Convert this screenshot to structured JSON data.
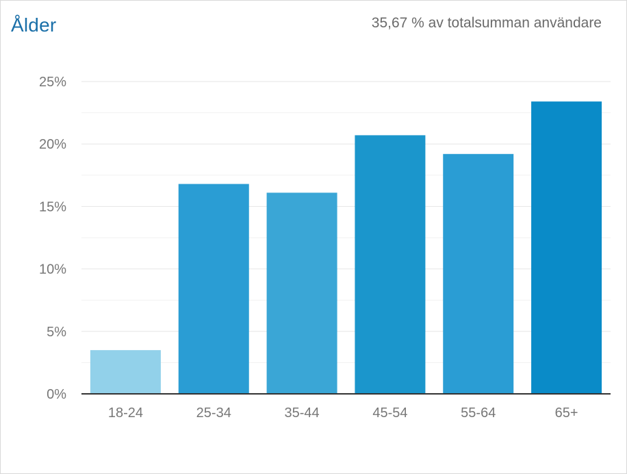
{
  "header": {
    "title": "Ålder",
    "subtitle": "35,67 % av totalsumman användare"
  },
  "colors": {
    "title": "#1a6fa8",
    "bar_light": "#92d1ea",
    "bar_mid": "#3aa6d6",
    "bar_dark": "#0a8bc8",
    "grid": "#e6e6e6",
    "axis": "#333333",
    "tick_text": "#777777"
  },
  "chart_data": {
    "type": "bar",
    "categories": [
      "18-24",
      "25-34",
      "35-44",
      "45-54",
      "55-64",
      "65+"
    ],
    "values": [
      3.5,
      16.8,
      16.1,
      20.7,
      19.2,
      23.4
    ],
    "bar_colors": [
      "#92d1ea",
      "#2a9dd4",
      "#3aa6d6",
      "#1b96cc",
      "#2a9dd4",
      "#0a8bc8"
    ],
    "ylim": [
      0,
      25
    ],
    "yticks": [
      0,
      5,
      10,
      15,
      20,
      25
    ],
    "ytick_labels": [
      "0%",
      "5%",
      "10%",
      "15%",
      "20%",
      "25%"
    ],
    "minor_grid": true,
    "xlabel": "",
    "ylabel": "",
    "legend": "none"
  }
}
